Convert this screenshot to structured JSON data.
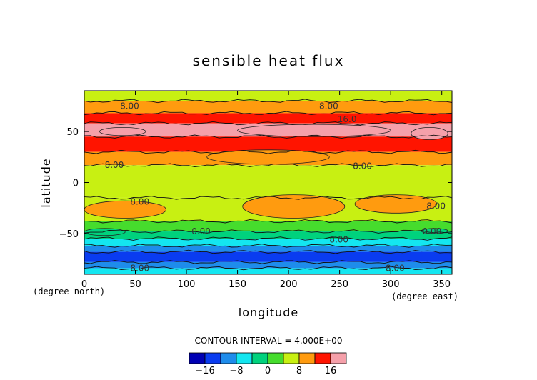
{
  "chart_data": {
    "type": "heatmap",
    "title": "sensible heat flux",
    "xlabel": "longitude",
    "ylabel": "latitude",
    "x_unit": "(degree_east)",
    "y_unit": "(degree_north)",
    "xlim": [
      0,
      360
    ],
    "ylim": [
      -90,
      90
    ],
    "x_ticks": [
      "0",
      "50",
      "100",
      "150",
      "200",
      "250",
      "300",
      "350"
    ],
    "y_ticks": [
      "50",
      "0",
      "-50"
    ],
    "contour_interval_text": "CONTOUR INTERVAL = 4.000E+00",
    "colorbar": {
      "levels": [
        -20,
        -16,
        -12,
        -8,
        -4,
        0,
        4,
        8,
        12,
        16,
        20
      ],
      "tick_labels": [
        "-16",
        "-8",
        "0",
        "8",
        "16"
      ],
      "colors": [
        "#0000b4",
        "#0a3cf0",
        "#1e8ceb",
        "#14e6f0",
        "#00d27d",
        "#46dc2d",
        "#c8f012",
        "#ff9b0f",
        "#ff1400",
        "#f5a0aa"
      ]
    },
    "contour_labels": [
      "8.00",
      "8.00",
      "16.0",
      "8.00",
      "8.00",
      "8.00",
      "8.00",
      "0.00",
      "0.00",
      "8.00",
      "8.00",
      "8.00"
    ],
    "zonal_bands": [
      {
        "lat": [
          80,
          90
        ],
        "value": 6
      },
      {
        "lat": [
          68,
          80
        ],
        "value": 10
      },
      {
        "lat": [
          58,
          68
        ],
        "value": 14
      },
      {
        "lat": [
          45,
          58
        ],
        "value": 16
      },
      {
        "lat": [
          30,
          45
        ],
        "value": 14
      },
      {
        "lat": [
          17,
          30
        ],
        "value": 10
      },
      {
        "lat": [
          -15,
          17
        ],
        "value": 6
      },
      {
        "lat": [
          -38,
          -15
        ],
        "value": 6
      },
      {
        "lat": [
          -48,
          -38
        ],
        "value": 2
      },
      {
        "lat": [
          -55,
          -48
        ],
        "value": -2
      },
      {
        "lat": [
          -62,
          -55
        ],
        "value": -6
      },
      {
        "lat": [
          -68,
          -62
        ],
        "value": -10
      },
      {
        "lat": [
          -78,
          -68
        ],
        "value": -14
      },
      {
        "lat": [
          -84,
          -78
        ],
        "value": -10
      },
      {
        "lat": [
          -90,
          -84
        ],
        "value": -6
      }
    ],
    "features": [
      {
        "lon": [
          150,
          300
        ],
        "lat": [
          45,
          57
        ],
        "value": 18
      },
      {
        "lon": [
          320,
          356
        ],
        "lat": [
          42,
          54
        ],
        "value": 18
      },
      {
        "lon": [
          15,
          60
        ],
        "lat": [
          46,
          54
        ],
        "value": 18
      },
      {
        "lon": [
          120,
          240
        ],
        "lat": [
          18,
          32
        ],
        "value": 10
      },
      {
        "lon": [
          0,
          80
        ],
        "lat": [
          -35,
          -18
        ],
        "value": 10
      },
      {
        "lon": [
          155,
          255
        ],
        "lat": [
          -35,
          -12
        ],
        "value": 10
      },
      {
        "lon": [
          265,
          345
        ],
        "lat": [
          -30,
          -12
        ],
        "value": 10
      },
      {
        "lon": [
          0,
          40
        ],
        "lat": [
          -52,
          -45
        ],
        "value": -2
      },
      {
        "lon": [
          330,
          356
        ],
        "lat": [
          -50,
          -45
        ],
        "value": -2
      }
    ]
  }
}
